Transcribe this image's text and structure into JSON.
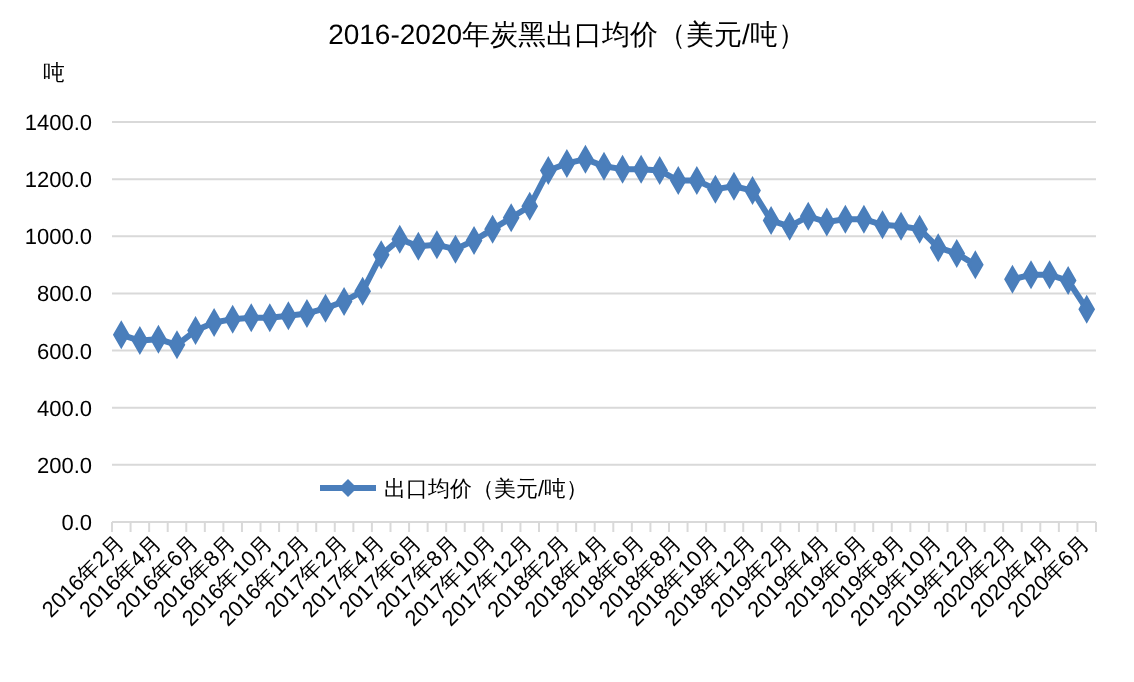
{
  "chart_data": {
    "type": "line",
    "title": "2016-2020年炭黑出口均价（美元/吨）",
    "ylabel": "吨",
    "categories": [
      "2016年2月",
      null,
      "2016年4月",
      null,
      "2016年6月",
      null,
      "2016年8月",
      null,
      "2016年10月",
      null,
      "2016年12月",
      null,
      "2017年2月",
      null,
      "2017年4月",
      null,
      "2017年6月",
      null,
      "2017年8月",
      null,
      "2017年10月",
      null,
      "2017年12月",
      null,
      "2018年2月",
      null,
      "2018年4月",
      null,
      "2018年6月",
      null,
      "2018年8月",
      null,
      "2018年10月",
      null,
      "2018年12月",
      null,
      "2019年2月",
      null,
      "2019年4月",
      null,
      "2019年6月",
      null,
      "2019年8月",
      null,
      "2019年10月",
      null,
      "2019年12月",
      null,
      "2020年2月",
      null,
      "2020年4月",
      null,
      "2020年6月"
    ],
    "series": [
      {
        "name": "出口均价（美元/吨）",
        "color": "#4a7ebb",
        "values": [
          655,
          635,
          640,
          620,
          670,
          698,
          710,
          715,
          715,
          722,
          730,
          748,
          772,
          808,
          935,
          990,
          965,
          970,
          955,
          985,
          1025,
          1065,
          1105,
          1230,
          1255,
          1270,
          1245,
          1235,
          1235,
          1230,
          1195,
          1195,
          1165,
          1175,
          1160,
          1055,
          1035,
          1070,
          1050,
          1060,
          1060,
          1040,
          1035,
          1025,
          960,
          940,
          900,
          null,
          850,
          865,
          865,
          845,
          745
        ]
      }
    ],
    "ylim": [
      0,
      1400
    ],
    "yticks": [
      {
        "value": 0,
        "label": "0.0"
      },
      {
        "value": 200,
        "label": "200.0"
      },
      {
        "value": 400,
        "label": "400.0"
      },
      {
        "value": 600,
        "label": "600.0"
      },
      {
        "value": 800,
        "label": "800.0"
      },
      {
        "value": 1000,
        "label": "1000.0"
      },
      {
        "value": 1200,
        "label": "1200.0"
      },
      {
        "value": 1400,
        "label": "1400.0"
      }
    ],
    "grid": "y",
    "legend": "bottom",
    "marker": "diamond",
    "line_style": "solid"
  }
}
